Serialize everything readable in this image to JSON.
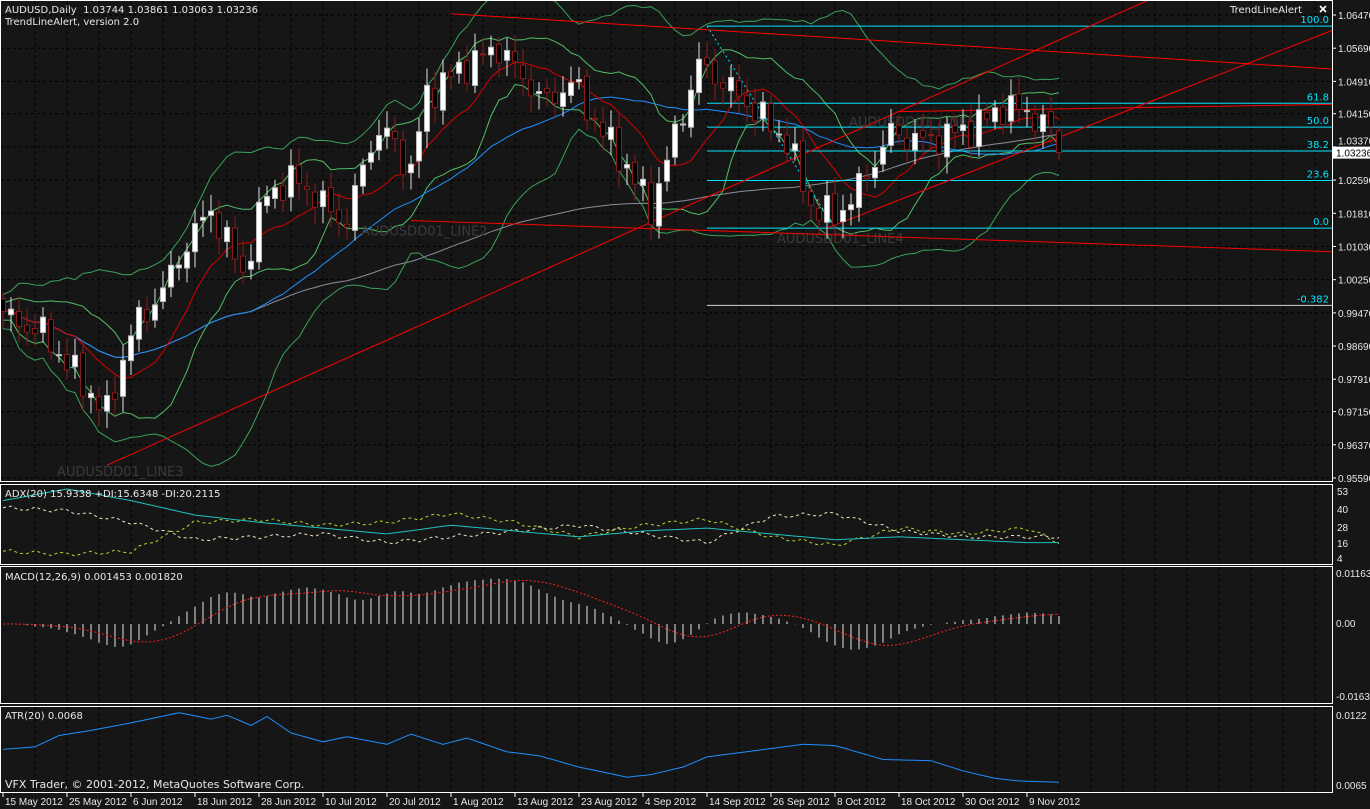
{
  "header": {
    "symbol_line": "AUDUSD,Daily  1.03744 1.03861 1.03063 1.03236",
    "indicator_line": "TrendLineAlert, version 2.0",
    "alert_label": "TrendLineAlert",
    "alert_close_icon": "close-x-icon"
  },
  "panes": {
    "adx_label": "ADX(20) 15.9338 +DI:15.6348 -DI:20.2115",
    "macd_label": "MACD(12,26,9) 0.001453 0.001820",
    "atr_label": "ATR(20) 0.0068",
    "copyright": "VFX Trader, © 2001-2012, MetaQuotes Software Corp."
  },
  "colors": {
    "background": "#161616",
    "bull_body": "#ffffff",
    "bear_outline": "#8b1a1a",
    "trendline": "#ff0000",
    "fib": "#00e5ff",
    "bands": "#3aa35a",
    "ma_fast": "#d80000",
    "ma_mid": "#1e90ff",
    "ma_slow": "#8c8c9c",
    "adx": "#20c0c0",
    "plus_di": "#b8d62a",
    "minus_di": "#f5e6c0",
    "atr": "#1e90ff",
    "macd_signal": "#ff2020"
  },
  "chart_data": {
    "type": "candlestick",
    "symbol": "AUDUSD",
    "timeframe": "Daily",
    "x_ticks": [
      "15 May 2012",
      "25 May 2012",
      "6 Jun 2012",
      "18 Jun 2012",
      "28 Jun 2012",
      "10 Jul 2012",
      "20 Jul 2012",
      "1 Aug 2012",
      "13 Aug 2012",
      "23 Aug 2012",
      "4 Sep 2012",
      "14 Sep 2012",
      "26 Sep 2012",
      "8 Oct 2012",
      "18 Oct 2012",
      "30 Oct 2012",
      "9 Nov 2012"
    ],
    "price_ticks": [
      "1.06470",
      "1.05690",
      "1.04910",
      "1.04150",
      "1.03370",
      "1.02590",
      "1.01810",
      "1.01030",
      "1.00250",
      "0.99470",
      "0.98690",
      "0.97910",
      "0.97150",
      "0.96370",
      "0.95590"
    ],
    "ylim": [
      0.9559,
      1.0647
    ],
    "current_price": "1.03236",
    "last_bar": {
      "open": 1.03744,
      "high": 1.03861,
      "low": 1.03063,
      "close": 1.03236
    },
    "close_points": [
      [
        "2012-05-15",
        0.995
      ],
      [
        "2012-05-16",
        0.993
      ],
      [
        "2012-05-22",
        0.99
      ],
      [
        "2012-05-29",
        0.978
      ],
      [
        "2012-06-01",
        0.971
      ],
      [
        "2012-06-06",
        0.99
      ],
      [
        "2012-06-12",
        1.0
      ],
      [
        "2012-06-15",
        1.011
      ],
      [
        "2012-06-20",
        1.019
      ],
      [
        "2012-06-26",
        1.004
      ],
      [
        "2012-06-29",
        1.023
      ],
      [
        "2012-07-05",
        1.026
      ],
      [
        "2012-07-10",
        1.02
      ],
      [
        "2012-07-13",
        1.016
      ],
      [
        "2012-07-18",
        1.035
      ],
      [
        "2012-07-20",
        1.037
      ],
      [
        "2012-07-25",
        1.028
      ],
      [
        "2012-07-27",
        1.046
      ],
      [
        "2012-08-03",
        1.053
      ],
      [
        "2012-08-09",
        1.057
      ],
      [
        "2012-08-14",
        1.05
      ],
      [
        "2012-08-17",
        1.044
      ],
      [
        "2012-08-22",
        1.049
      ],
      [
        "2012-08-28",
        1.037
      ],
      [
        "2012-08-31",
        1.029
      ],
      [
        "2012-09-05",
        1.019
      ],
      [
        "2012-09-11",
        1.042
      ],
      [
        "2012-09-13",
        1.053
      ],
      [
        "2012-09-18",
        1.049
      ],
      [
        "2012-09-21",
        1.044
      ],
      [
        "2012-09-28",
        1.035
      ],
      [
        "2012-10-03",
        1.02
      ],
      [
        "2012-10-08",
        1.017
      ],
      [
        "2012-10-11",
        1.024
      ],
      [
        "2012-10-17",
        1.037
      ],
      [
        "2012-10-23",
        1.035
      ],
      [
        "2012-10-25",
        1.036
      ],
      [
        "2012-10-31",
        1.038
      ],
      [
        "2012-11-06",
        1.043
      ],
      [
        "2012-11-09",
        1.042
      ],
      [
        "2012-11-14",
        1.0374
      ]
    ],
    "fibonacci": {
      "from": {
        "date": "2012-09-14",
        "price": 1.0621
      },
      "to": {
        "date": "2012-10-08",
        "price": 1.0146
      },
      "levels": [
        {
          "label": "100.0",
          "ratio": 1.0
        },
        {
          "label": "61.8",
          "ratio": 0.618
        },
        {
          "label": "50.0",
          "ratio": 0.5
        },
        {
          "label": "38.2",
          "ratio": 0.382
        },
        {
          "label": "23.6",
          "ratio": 0.236
        },
        {
          "label": "0.0",
          "ratio": 0.0
        },
        {
          "label": "-0.382",
          "ratio": -0.382
        }
      ]
    },
    "trendlines": [
      {
        "name": "AUDUSDD01_LINE3",
        "p1": [
          "2012-06-01",
          0.9589
        ],
        "p2": [
          "2012-09-05",
          1.016
        ]
      },
      {
        "name": "AUDUSDD01_LINE4",
        "p1": [
          "2012-10-05",
          1.0146
        ],
        "p2": [
          "2012-11-09",
          1.033
        ]
      },
      {
        "name": "AUDUSDD01_LINE2",
        "p1": [
          "2012-07-25",
          1.0164
        ],
        "p2": [
          "2012-11-09",
          1.0115
        ]
      },
      {
        "name": "AUDUSDD01_LINE5",
        "p1": [
          "2012-10-18",
          1.042
        ],
        "p2": [
          "2012-11-09",
          1.0425
        ]
      },
      {
        "name": "",
        "p1": [
          "2012-08-01",
          1.065
        ],
        "p2": [
          "2012-11-09",
          1.0565
        ]
      }
    ],
    "adx": {
      "ylim": [
        4,
        53
      ],
      "ticks": [
        "53",
        "40",
        "28",
        "16",
        "4"
      ],
      "adx": [
        [
          "2012-05-15",
          45
        ],
        [
          "2012-05-25",
          53
        ],
        [
          "2012-06-06",
          45
        ],
        [
          "2012-06-18",
          35
        ],
        [
          "2012-06-28",
          30
        ],
        [
          "2012-07-10",
          26
        ],
        [
          "2012-07-20",
          22
        ],
        [
          "2012-08-01",
          28
        ],
        [
          "2012-08-13",
          24
        ],
        [
          "2012-08-23",
          20
        ],
        [
          "2012-09-04",
          24
        ],
        [
          "2012-09-14",
          26
        ],
        [
          "2012-09-26",
          22
        ],
        [
          "2012-10-08",
          18
        ],
        [
          "2012-10-18",
          20
        ],
        [
          "2012-10-30",
          18
        ],
        [
          "2012-11-09",
          16
        ],
        [
          "2012-11-15",
          16
        ]
      ],
      "plus_di": [
        [
          "2012-05-15",
          10
        ],
        [
          "2012-05-25",
          8
        ],
        [
          "2012-06-06",
          10
        ],
        [
          "2012-06-18",
          30
        ],
        [
          "2012-06-28",
          32
        ],
        [
          "2012-07-10",
          28
        ],
        [
          "2012-07-20",
          30
        ],
        [
          "2012-08-01",
          36
        ],
        [
          "2012-08-13",
          30
        ],
        [
          "2012-08-23",
          20
        ],
        [
          "2012-09-04",
          28
        ],
        [
          "2012-09-14",
          32
        ],
        [
          "2012-09-26",
          20
        ],
        [
          "2012-10-08",
          14
        ],
        [
          "2012-10-18",
          26
        ],
        [
          "2012-10-30",
          22
        ],
        [
          "2012-11-09",
          26
        ],
        [
          "2012-11-15",
          16
        ]
      ],
      "minus_di": [
        [
          "2012-05-15",
          40
        ],
        [
          "2012-05-25",
          38
        ],
        [
          "2012-06-06",
          30
        ],
        [
          "2012-06-18",
          18
        ],
        [
          "2012-06-28",
          20
        ],
        [
          "2012-07-10",
          22
        ],
        [
          "2012-07-20",
          16
        ],
        [
          "2012-08-01",
          20
        ],
        [
          "2012-08-13",
          24
        ],
        [
          "2012-08-23",
          28
        ],
        [
          "2012-09-04",
          22
        ],
        [
          "2012-09-14",
          16
        ],
        [
          "2012-09-26",
          34
        ],
        [
          "2012-10-08",
          36
        ],
        [
          "2012-10-18",
          24
        ],
        [
          "2012-10-30",
          20
        ],
        [
          "2012-11-09",
          20
        ],
        [
          "2012-11-15",
          20
        ]
      ]
    },
    "macd": {
      "ylim": [
        -0.01633,
        0.01163
      ],
      "ticks": [
        "0.01163",
        "0.00",
        "-0.01633"
      ],
      "fast": 12,
      "slow": 26,
      "signal": 9
    },
    "atr": {
      "ylim": [
        0.0065,
        0.0122
      ],
      "ticks": [
        "0.0122",
        "0.0065"
      ],
      "values": [
        [
          "2012-05-15",
          0.0094
        ],
        [
          "2012-05-21",
          0.0096
        ],
        [
          "2012-05-24",
          0.0105
        ],
        [
          "2012-05-30",
          0.0109
        ],
        [
          "2012-06-06",
          0.0115
        ],
        [
          "2012-06-14",
          0.0123
        ],
        [
          "2012-06-20",
          0.0118
        ],
        [
          "2012-06-22",
          0.0121
        ],
        [
          "2012-06-27",
          0.0113
        ],
        [
          "2012-06-29",
          0.012
        ],
        [
          "2012-07-04",
          0.0107
        ],
        [
          "2012-07-10",
          0.01
        ],
        [
          "2012-07-13",
          0.0104
        ],
        [
          "2012-07-20",
          0.0098
        ],
        [
          "2012-07-25",
          0.0106
        ],
        [
          "2012-07-31",
          0.0098
        ],
        [
          "2012-08-03",
          0.0103
        ],
        [
          "2012-08-10",
          0.0092
        ],
        [
          "2012-08-16",
          0.0089
        ],
        [
          "2012-08-23",
          0.008
        ],
        [
          "2012-08-31",
          0.0072
        ],
        [
          "2012-09-05",
          0.0074
        ],
        [
          "2012-09-11",
          0.008
        ],
        [
          "2012-09-14",
          0.0088
        ],
        [
          "2012-10-02",
          0.0098
        ],
        [
          "2012-10-08",
          0.0097
        ],
        [
          "2012-10-16",
          0.0086
        ],
        [
          "2012-10-24",
          0.0085
        ],
        [
          "2012-10-30",
          0.0077
        ],
        [
          "2012-11-05",
          0.0071
        ],
        [
          "2012-11-08",
          0.0069
        ],
        [
          "2012-11-15",
          0.0068
        ]
      ]
    }
  }
}
